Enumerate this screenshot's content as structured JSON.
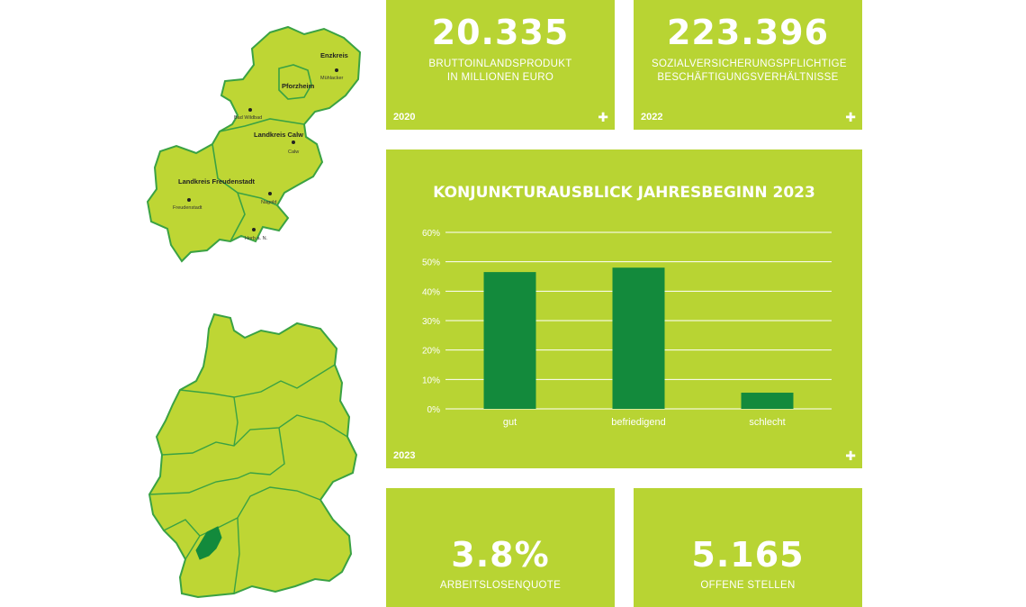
{
  "kpis": {
    "gdp": {
      "value": "20.335",
      "label": "BRUTTOINLANDSPRODUKT IN MILLIONEN EURO",
      "year": "2020"
    },
    "employment": {
      "value": "223.396",
      "label": "SOZIALVERSICHERUNGSPFLICHTIGE BESCHÄFTIGUNGSVERHÄLTNISSE",
      "year": "2022"
    },
    "unemployment": {
      "value": "3.8%",
      "label": "ARBEITSLOSENQUOTE"
    },
    "vacancies": {
      "value": "5.165",
      "label": "OFFENE STELLEN"
    }
  },
  "chart_tile": {
    "year": "2023"
  },
  "chart_data": {
    "type": "bar",
    "title": "KONJUNKTURAUSBLICK JAHRESBEGINN 2023",
    "categories": [
      "gut",
      "befriedigend",
      "schlecht"
    ],
    "values": [
      46.5,
      48,
      5.5
    ],
    "ylim": [
      0,
      60
    ],
    "yticks": [
      "0%",
      "10%",
      "20%",
      "30%",
      "40%",
      "50%",
      "60%"
    ],
    "grid": true,
    "bar_color": "#138a3c"
  },
  "region_map": {
    "labels": [
      "Enzkreis",
      "Pforzheim",
      "Landkreis Calw",
      "Landkreis Freudenstadt"
    ],
    "places": [
      "Mühlacker",
      "Bad Wildbad",
      "Calw",
      "Freudenstadt",
      "Nagold",
      "Horb a. N."
    ]
  },
  "colors": {
    "tile": "#b8d433",
    "map_fill": "#bed634",
    "map_border": "#3aa243",
    "highlight": "#138a3c"
  }
}
